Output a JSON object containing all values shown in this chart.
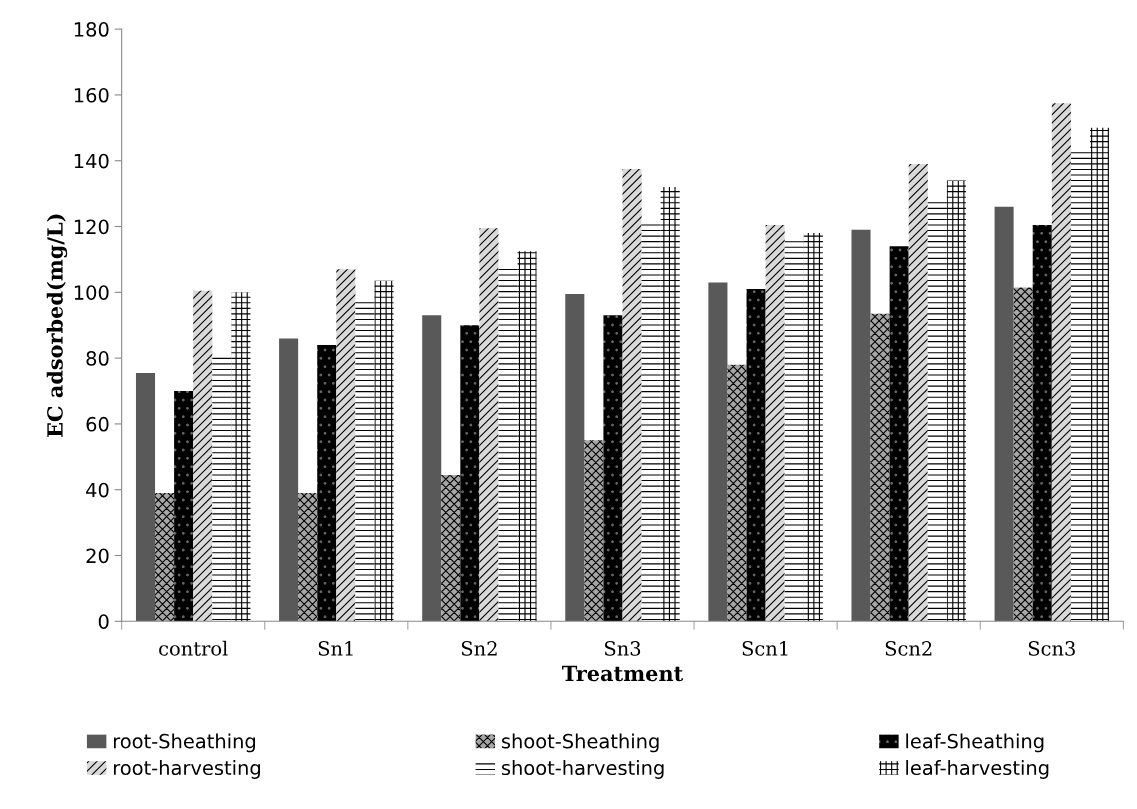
{
  "chart_data": {
    "type": "bar",
    "xlabel": "Treatment",
    "ylabel": "EC adsorbed(mg/L)",
    "categories": [
      "control",
      "Sn1",
      "Sn2",
      "Sn3",
      "Scn1",
      "Scn2",
      "Scn3"
    ],
    "series": [
      {
        "name": "root-Sheathing",
        "color": "#595959",
        "values": [
          75.5,
          86,
          93,
          99.5,
          103,
          119,
          126
        ]
      },
      {
        "name": "shoot-Sheathing",
        "color": "#a6a6a6",
        "values": [
          39,
          39,
          44.5,
          55,
          78,
          93.5,
          101.5
        ]
      },
      {
        "name": "leaf-Sheathing",
        "color": "#000000",
        "values": [
          70,
          84,
          90,
          93,
          101,
          114,
          120.5
        ]
      },
      {
        "name": "root-harvesting",
        "color": "#d9d9d9",
        "values": [
          100.5,
          107,
          119.5,
          137.5,
          120.5,
          139,
          157.5
        ]
      },
      {
        "name": "shoot-harvesting",
        "color": "#ffffff",
        "values": [
          80.5,
          98,
          108,
          122,
          115.5,
          128,
          143.5
        ]
      },
      {
        "name": "leaf-harvesting",
        "color": "#ffffff",
        "values": [
          100,
          103.5,
          112.5,
          132,
          118,
          134,
          150
        ]
      }
    ],
    "ylim": [
      0,
      180
    ],
    "yticks": [
      0,
      20,
      40,
      60,
      80,
      100,
      120,
      140,
      160,
      180
    ],
    "grid": false,
    "legend": "bottom"
  }
}
